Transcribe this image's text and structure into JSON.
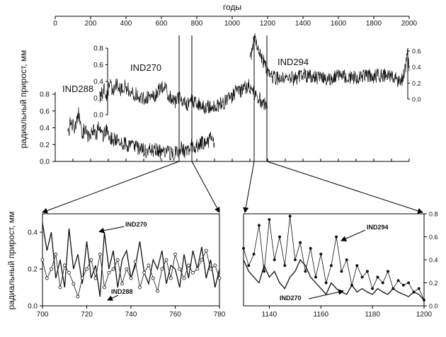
{
  "chart_data": [
    {
      "type": "line",
      "xlabel": "годы",
      "ylabel": "радиальный прирост, мм",
      "xlim": [
        0,
        2000
      ],
      "x_ticks": [
        "0",
        "200",
        "400",
        "600",
        "800",
        "1000",
        "1200",
        "1400",
        "1600",
        "1800",
        "2000"
      ],
      "y_ticks": [
        "0.0",
        "0.2",
        "0.4",
        "0.6",
        "0.8"
      ],
      "series": [
        {
          "name": "IND288",
          "x": [
            70,
            90,
            110,
            130,
            150,
            170,
            190,
            210,
            230,
            250,
            270,
            290,
            310,
            330,
            350,
            370,
            390,
            410,
            430,
            450,
            470,
            490,
            510,
            530,
            550,
            570,
            590,
            610,
            630,
            650,
            670,
            690,
            710,
            730,
            750,
            770,
            790,
            810,
            830,
            850,
            870,
            890,
            900
          ],
          "values": [
            0.3,
            0.5,
            0.35,
            0.6,
            0.3,
            0.4,
            0.28,
            0.38,
            0.3,
            0.45,
            0.32,
            0.38,
            0.3,
            0.26,
            0.24,
            0.2,
            0.22,
            0.16,
            0.2,
            0.18,
            0.15,
            0.14,
            0.12,
            0.15,
            0.12,
            0.14,
            0.12,
            0.1,
            0.12,
            0.1,
            0.1,
            0.12,
            0.15,
            0.12,
            0.14,
            0.18,
            0.15,
            0.2,
            0.22,
            0.2,
            0.25,
            0.3,
            0.22
          ]
        },
        {
          "name": "IND270",
          "x": [
            250,
            270,
            290,
            310,
            330,
            350,
            370,
            390,
            410,
            430,
            450,
            470,
            490,
            510,
            530,
            550,
            570,
            590,
            610,
            630,
            650,
            670,
            690,
            710,
            730,
            750,
            770,
            790,
            810,
            830,
            850,
            870,
            890,
            910,
            930,
            950,
            970,
            990,
            1010,
            1030,
            1050,
            1070,
            1090,
            1110,
            1130,
            1150,
            1170,
            1190,
            1200
          ],
          "values": [
            0.2,
            0.3,
            0.25,
            0.35,
            0.3,
            0.4,
            0.3,
            0.35,
            0.3,
            0.28,
            0.25,
            0.22,
            0.2,
            0.18,
            0.22,
            0.2,
            0.25,
            0.3,
            0.35,
            0.28,
            0.2,
            0.15,
            0.18,
            0.2,
            0.15,
            0.12,
            0.18,
            0.15,
            0.12,
            0.1,
            0.08,
            0.1,
            0.08,
            0.1,
            0.12,
            0.15,
            0.18,
            0.2,
            0.25,
            0.3,
            0.28,
            0.32,
            0.35,
            0.3,
            0.25,
            0.2,
            0.15,
            0.12,
            0.1
          ]
        },
        {
          "name": "IND294",
          "x": [
            1100,
            1110,
            1120,
            1130,
            1140,
            1150,
            1160,
            1170,
            1180,
            1190,
            1200,
            1220,
            1250,
            1300,
            1350,
            1400,
            1450,
            1500,
            1550,
            1600,
            1650,
            1700,
            1750,
            1800,
            1850,
            1900,
            1920,
            1940,
            1960,
            1970,
            1980,
            1990,
            2000
          ],
          "values": [
            0.5,
            0.6,
            0.7,
            0.75,
            0.6,
            0.65,
            0.55,
            0.5,
            0.45,
            0.4,
            0.35,
            0.3,
            0.25,
            0.28,
            0.25,
            0.3,
            0.28,
            0.26,
            0.25,
            0.3,
            0.28,
            0.27,
            0.3,
            0.28,
            0.3,
            0.28,
            0.26,
            0.22,
            0.25,
            0.3,
            0.4,
            0.55,
            0.35
          ]
        }
      ],
      "annotations": [
        "IND288",
        "IND270",
        "IND294"
      ]
    },
    {
      "type": "line",
      "ylabel": "радиальный прирост, мм",
      "xlim": [
        700,
        780
      ],
      "ylim": [
        0,
        0.5
      ],
      "x_ticks": [
        "700",
        "720",
        "740",
        "760",
        "780"
      ],
      "y_ticks": [
        "0.0",
        "0.2",
        "0.4"
      ],
      "series": [
        {
          "name": "IND270",
          "x": [
            700,
            702,
            704,
            706,
            708,
            710,
            712,
            714,
            716,
            718,
            720,
            722,
            724,
            726,
            728,
            730,
            732,
            734,
            736,
            738,
            740,
            742,
            744,
            746,
            748,
            750,
            752,
            754,
            756,
            758,
            760,
            762,
            764,
            766,
            768,
            770,
            772,
            774,
            776,
            778,
            780
          ],
          "values": [
            0.45,
            0.3,
            0.4,
            0.15,
            0.25,
            0.1,
            0.42,
            0.2,
            0.28,
            0.12,
            0.35,
            0.15,
            0.22,
            0.05,
            0.4,
            0.2,
            0.3,
            0.1,
            0.25,
            0.3,
            0.15,
            0.22,
            0.35,
            0.18,
            0.12,
            0.25,
            0.2,
            0.3,
            0.12,
            0.22,
            0.2,
            0.1,
            0.28,
            0.15,
            0.3,
            0.2,
            0.32,
            0.15,
            0.25,
            0.1,
            0.2
          ]
        },
        {
          "name": "IND288",
          "x": [
            700,
            702,
            704,
            706,
            708,
            710,
            712,
            714,
            716,
            718,
            720,
            722,
            724,
            726,
            728,
            730,
            732,
            734,
            736,
            738,
            740,
            742,
            744,
            746,
            748,
            750,
            752,
            754,
            756,
            758,
            760,
            762,
            764,
            766,
            768,
            770,
            772,
            774,
            776,
            778,
            780
          ],
          "values": [
            0.25,
            0.15,
            0.2,
            0.28,
            0.1,
            0.22,
            0.18,
            0.12,
            0.05,
            0.15,
            0.2,
            0.25,
            0.15,
            0.28,
            0.1,
            0.18,
            0.2,
            0.25,
            0.12,
            0.2,
            0.15,
            0.24,
            0.1,
            0.18,
            0.22,
            0.15,
            0.08,
            0.2,
            0.25,
            0.15,
            0.28,
            0.2,
            0.15,
            0.22,
            0.18,
            0.2,
            0.25,
            0.3,
            0.2,
            0.22,
            0.15
          ]
        }
      ],
      "annotations": [
        "IND270",
        "IND288"
      ]
    },
    {
      "type": "line",
      "xlim": [
        1130,
        1200
      ],
      "ylim": [
        0,
        0.8
      ],
      "x_ticks": [
        "1140",
        "1160",
        "1180",
        "1200"
      ],
      "y_ticks": [
        "0.0",
        "0.2",
        "0.4",
        "0.6",
        "0.8"
      ],
      "series": [
        {
          "name": "IND294",
          "x": [
            1130,
            1132,
            1134,
            1136,
            1138,
            1140,
            1142,
            1144,
            1146,
            1148,
            1150,
            1152,
            1154,
            1156,
            1158,
            1160,
            1162,
            1164,
            1166,
            1168,
            1170,
            1172,
            1174,
            1176,
            1178,
            1180,
            1182,
            1184,
            1186,
            1188,
            1190,
            1192,
            1194,
            1196,
            1198,
            1200
          ],
          "values": [
            0.5,
            0.35,
            0.45,
            0.7,
            0.3,
            0.75,
            0.4,
            0.6,
            0.35,
            0.78,
            0.4,
            0.55,
            0.3,
            0.5,
            0.25,
            0.45,
            0.2,
            0.35,
            0.6,
            0.3,
            0.4,
            0.18,
            0.35,
            0.25,
            0.3,
            0.15,
            0.25,
            0.2,
            0.3,
            0.15,
            0.22,
            0.18,
            0.2,
            0.12,
            0.15,
            0.05
          ]
        },
        {
          "name": "IND270",
          "x": [
            1130,
            1132,
            1134,
            1136,
            1138,
            1140,
            1142,
            1144,
            1146,
            1148,
            1150,
            1152,
            1154,
            1156,
            1158,
            1160,
            1162,
            1164,
            1166,
            1168,
            1170,
            1172,
            1174,
            1176,
            1178,
            1180,
            1182,
            1184,
            1186,
            1188,
            1190,
            1192,
            1194,
            1196,
            1198,
            1200
          ],
          "values": [
            0.4,
            0.3,
            0.25,
            0.2,
            0.35,
            0.25,
            0.3,
            0.2,
            0.15,
            0.25,
            0.3,
            0.4,
            0.35,
            0.25,
            0.2,
            0.15,
            0.1,
            0.2,
            0.15,
            0.12,
            0.1,
            0.18,
            0.12,
            0.15,
            0.12,
            0.1,
            0.15,
            0.12,
            0.1,
            0.15,
            0.12,
            0.1,
            0.08,
            0.12,
            0.1,
            0.05
          ]
        }
      ],
      "annotations": [
        "IND294",
        "IND270"
      ]
    }
  ]
}
